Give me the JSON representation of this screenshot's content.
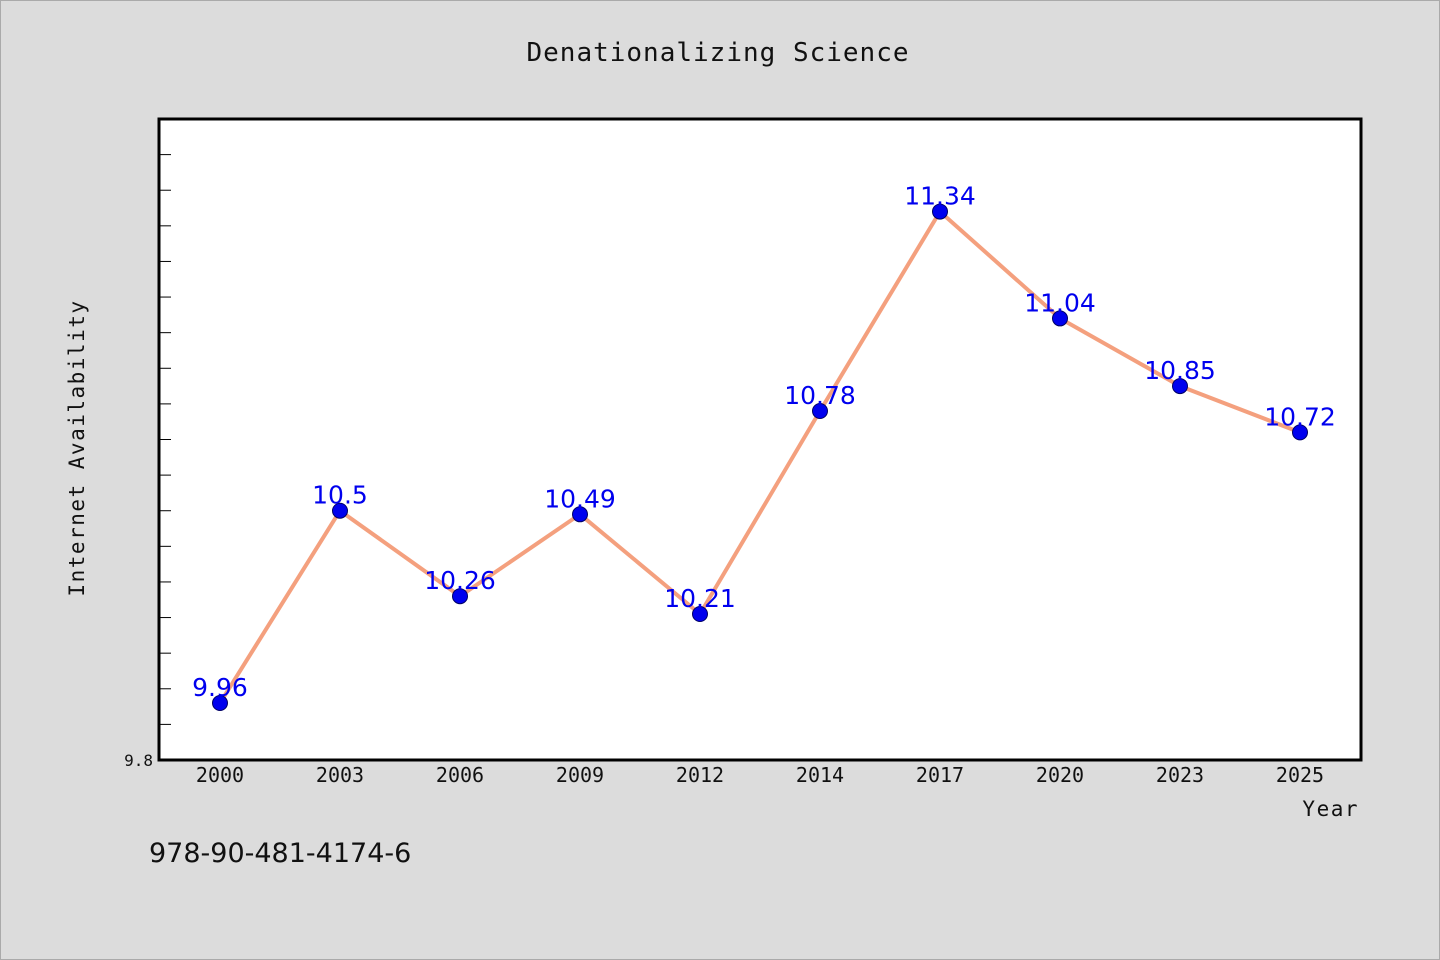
{
  "footer": {
    "code": "978-90-481-4174-6"
  },
  "chart_data": {
    "type": "line",
    "title": "Denationalizing Science",
    "xlabel": "Year",
    "ylabel": "Internet Availability",
    "categories": [
      "2000",
      "2003",
      "2006",
      "2009",
      "2012",
      "2014",
      "2017",
      "2020",
      "2023",
      "2025"
    ],
    "series": [
      {
        "values": [
          9.96,
          10.5,
          10.26,
          10.49,
          10.21,
          10.78,
          11.34,
          11.04,
          10.85,
          10.72
        ],
        "data_labels": [
          "9.96",
          "10.5",
          "10.26",
          "10.49",
          "10.21",
          "10.78",
          "11.34",
          "11.04",
          "10.85",
          "10.72"
        ]
      }
    ],
    "ylim": [
      9.8,
      11.6
    ],
    "y_tick_labels": [
      "9.8"
    ],
    "grid": false,
    "legend": "none",
    "colors": {
      "line": "#f4a07e",
      "marker": "#0000ee",
      "label": "#0000ee",
      "background": "#dcdcdc",
      "plot_bg": "#ffffff"
    }
  }
}
